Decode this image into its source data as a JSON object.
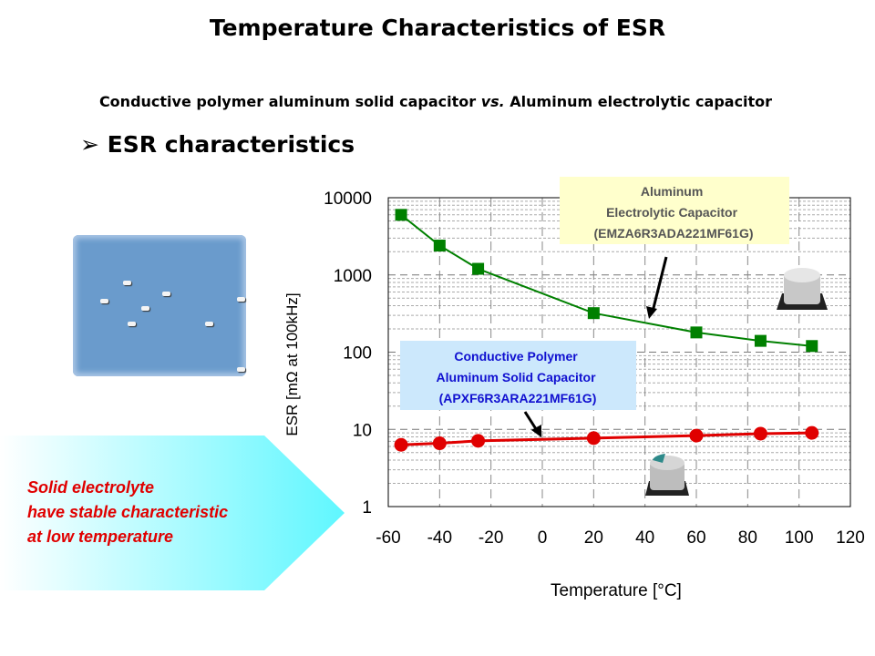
{
  "title": "Temperature Characteristics of ESR",
  "subtitle_parts": [
    "Conductive polymer aluminum solid capacitor ",
    "vs.",
    " Aluminum electrolytic capacitor"
  ],
  "bullet": {
    "icon": "arrow-bullet-icon",
    "symbol": "➢",
    "text": "ESR characteristics"
  },
  "callout": {
    "lines": [
      "Solid electrolyte",
      "have stable characteristic",
      "at low temperature"
    ],
    "color": "#e00000"
  },
  "chart_data": {
    "type": "line",
    "xlabel": "Temperature [°C]",
    "ylabel": "ESR [mΩ at 100kHz]",
    "xlim": [
      -60,
      120
    ],
    "ylim": [
      1,
      10000
    ],
    "yscale": "log",
    "xticks": [
      "-60",
      "-40",
      "-20",
      "0",
      "20",
      "40",
      "60",
      "80",
      "100",
      "120"
    ],
    "yticks": [
      "1",
      "10",
      "100",
      "1000",
      "10000"
    ],
    "grid": true,
    "series": [
      {
        "name": "Aluminum Electrolytic Capacitor (EMZA6R3ADA221MF61G)",
        "label_lines": [
          "Aluminum",
          "Electrolytic Capacitor",
          "(EMZA6R3ADA221MF61G)"
        ],
        "color": "#008000",
        "marker": "square",
        "x": [
          -55,
          -40,
          -25,
          20,
          60,
          85,
          105
        ],
        "y": [
          6000,
          2400,
          1200,
          320,
          180,
          140,
          120
        ]
      },
      {
        "name": "Conductive Polymer Aluminum Solid Capacitor (APXF6R3ARA221MF61G)",
        "label_lines": [
          "Conductive Polymer",
          "Aluminum Solid Capacitor",
          "(APXF6R3ARA221MF61G)"
        ],
        "color": "#e00000",
        "marker": "circle",
        "x": [
          -55,
          -40,
          -25,
          20,
          60,
          85,
          105
        ],
        "y": [
          6.3,
          6.6,
          7.1,
          7.7,
          8.3,
          8.8,
          9.0
        ]
      }
    ]
  }
}
